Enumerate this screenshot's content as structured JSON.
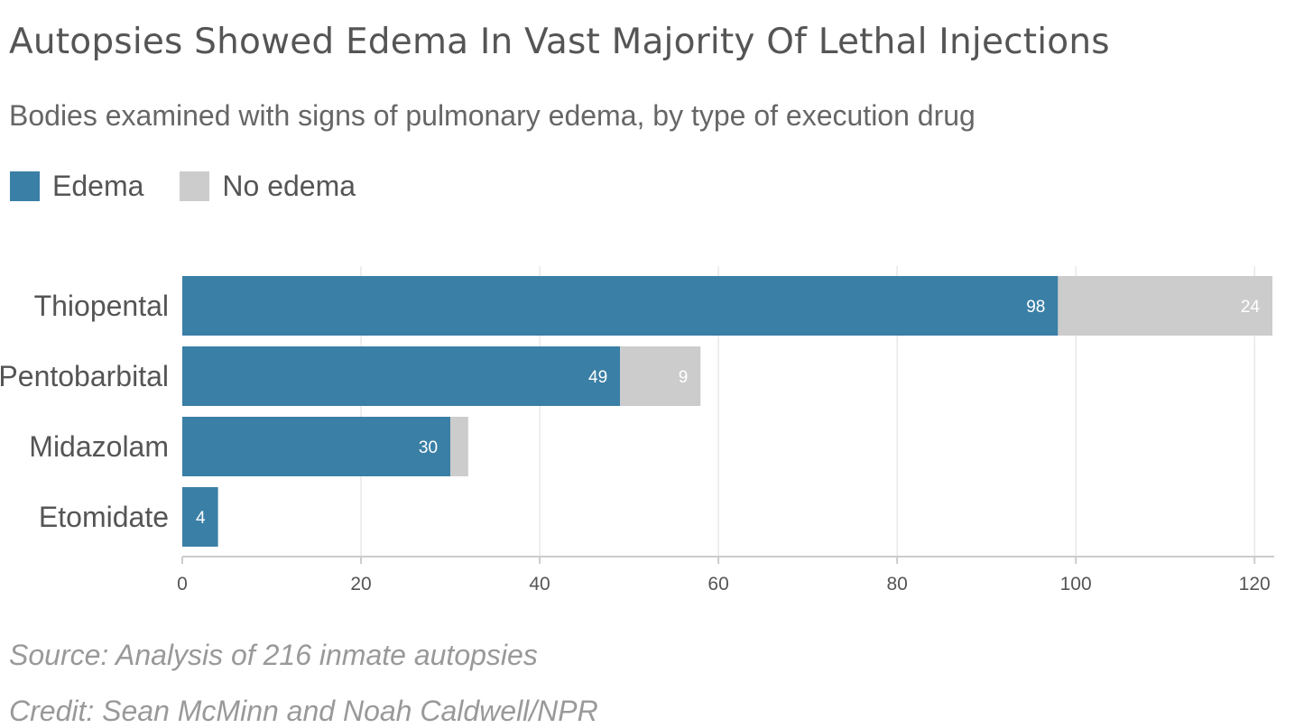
{
  "chart_data": {
    "type": "bar",
    "orientation": "horizontal",
    "stacked": true,
    "title": "Autopsies Showed Edema In Vast Majority Of Lethal Injections",
    "subtitle": "Bodies examined with signs of pulmonary edema, by type of execution drug",
    "categories": [
      "Thiopental",
      "Pentobarbital",
      "Midazolam",
      "Etomidate"
    ],
    "series": [
      {
        "name": "Edema",
        "color": "#3a7fa6",
        "values": [
          98,
          49,
          30,
          4
        ],
        "labels": [
          "98",
          "49",
          "30",
          "4"
        ]
      },
      {
        "name": "No edema",
        "color": "#cccccc",
        "values": [
          24,
          9,
          2,
          0
        ],
        "labels": [
          "24",
          "9",
          "",
          ""
        ]
      }
    ],
    "xlim": [
      0,
      122
    ],
    "xticks": [
      0,
      20,
      40,
      60,
      80,
      100,
      120
    ],
    "xtick_labels": [
      "0",
      "20",
      "40",
      "60",
      "80",
      "100",
      "120"
    ],
    "grid": "vertical",
    "legend": "top-left",
    "source": "Source: Analysis of 216 inmate autopsies",
    "credit": "Credit: Sean McMinn and Noah Caldwell/NPR"
  }
}
